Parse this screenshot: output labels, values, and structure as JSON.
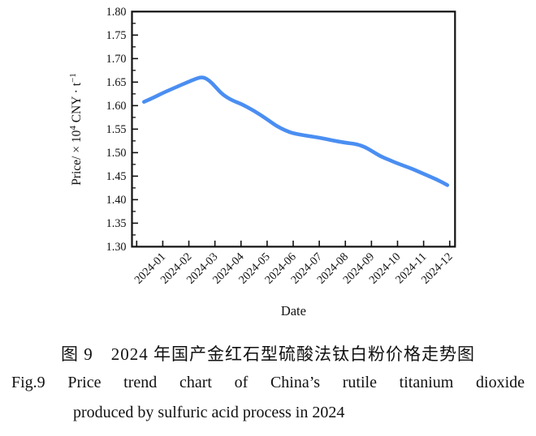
{
  "figure": {
    "caption_zh": "图 9　2024 年国产金红石型硫酸法钛白粉价格走势图",
    "caption_en_line1": "Fig.9 Price trend chart of China’s rutile titanium dioxide",
    "caption_en_line2": "produced by sulfuric acid process in 2024"
  },
  "chart_data": {
    "type": "line",
    "title": "Price trend chart of China's rutile titanium dioxide produced by sulfuric acid process in 2024",
    "xlabel": "Date",
    "ylabel": "Price/ ×10⁴ CNY·t⁻¹",
    "ylabel_parts": {
      "pre": "Price/ × 10",
      "sup1": "4",
      "mid": " CNY · t",
      "sup2": "−1"
    },
    "ylim": [
      1.3,
      1.8
    ],
    "ytick_step": 0.05,
    "yminor_step": 0.025,
    "grid": false,
    "legend": "none",
    "categories": [
      "2024-01",
      "2024-02",
      "2024-03",
      "2024-04",
      "2024-05",
      "2024-06",
      "2024-07",
      "2024-08",
      "2024-09",
      "2024-10",
      "2024-11",
      "2024-12"
    ],
    "values": [
      1.63,
      1.65,
      1.64,
      1.605,
      1.57,
      1.54,
      1.53,
      1.52,
      1.505,
      1.48,
      1.455,
      1.43
    ],
    "peak": {
      "between": [
        "2024-02",
        "2024-03"
      ],
      "value": 1.66
    },
    "curve_points": [
      [
        0.28,
        1.608
      ],
      [
        0.65,
        1.617
      ],
      [
        1.0,
        1.627
      ],
      [
        1.5,
        1.639
      ],
      [
        2.0,
        1.651
      ],
      [
        2.3,
        1.658
      ],
      [
        2.55,
        1.661
      ],
      [
        2.8,
        1.653
      ],
      [
        3.0,
        1.641
      ],
      [
        3.3,
        1.623
      ],
      [
        3.7,
        1.61
      ],
      [
        4.0,
        1.604
      ],
      [
        4.5,
        1.589
      ],
      [
        5.0,
        1.571
      ],
      [
        5.35,
        1.557
      ],
      [
        5.7,
        1.547
      ],
      [
        6.0,
        1.541
      ],
      [
        6.5,
        1.536
      ],
      [
        7.0,
        1.532
      ],
      [
        7.5,
        1.526
      ],
      [
        8.0,
        1.521
      ],
      [
        8.45,
        1.518
      ],
      [
        8.75,
        1.512
      ],
      [
        9.0,
        1.504
      ],
      [
        9.35,
        1.492
      ],
      [
        9.7,
        1.484
      ],
      [
        10.0,
        1.477
      ],
      [
        10.5,
        1.467
      ],
      [
        11.0,
        1.455
      ],
      [
        11.5,
        1.443
      ],
      [
        11.91,
        1.431
      ]
    ],
    "line_color": "#4a8ef2",
    "axis_color": "#111111"
  }
}
